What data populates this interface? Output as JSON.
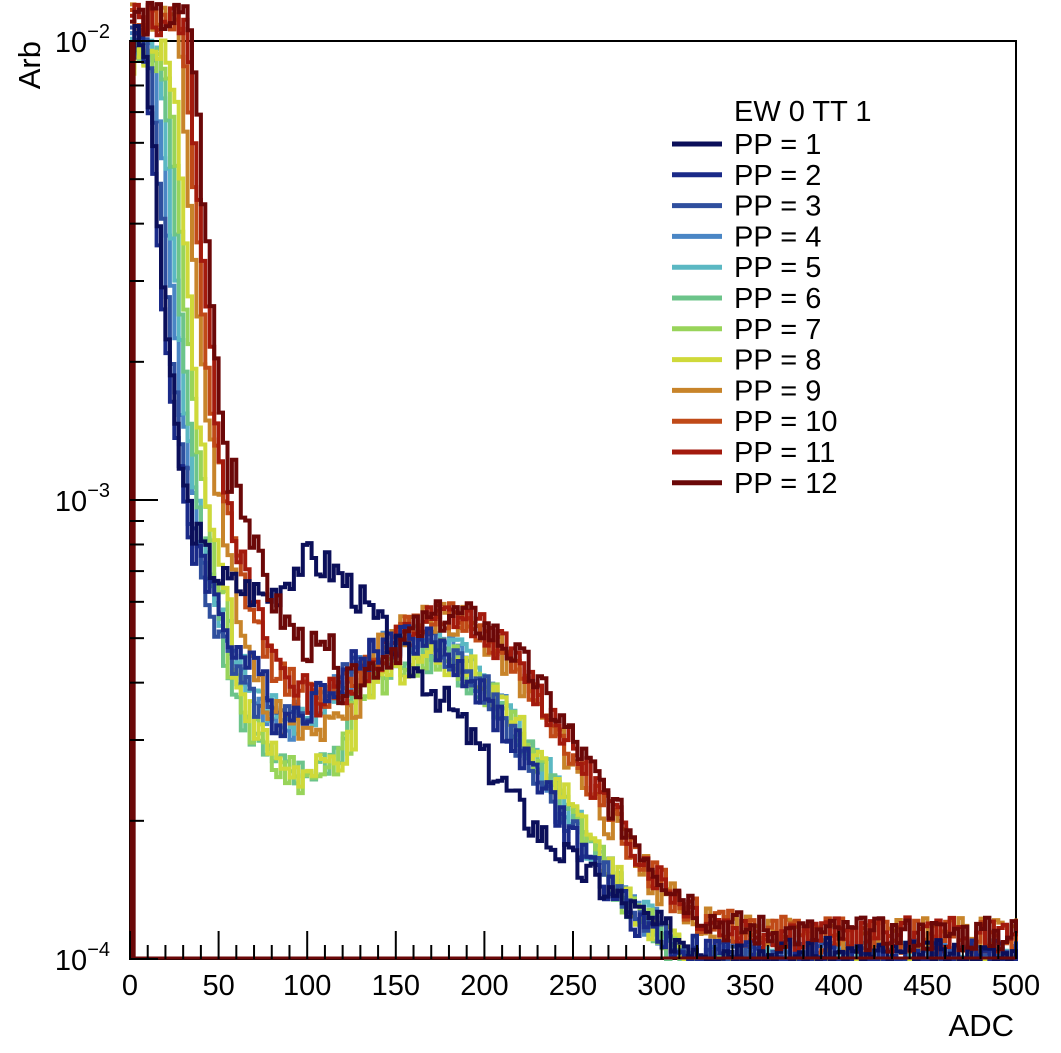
{
  "chart_data": {
    "type": "line",
    "xlabel": "ADC",
    "ylabel": "Arb",
    "xlim": [
      0,
      500
    ],
    "ylim": [
      0.0001,
      0.01
    ],
    "log_y": true,
    "x_ticks": [
      "0",
      "50",
      "100",
      "150",
      "200",
      "250",
      "300",
      "350",
      "400",
      "450",
      "500"
    ],
    "y_ticks": [
      {
        "value": 0.0001,
        "base": "10",
        "exp": "−4"
      },
      {
        "value": 0.001,
        "base": "10",
        "exp": "−3"
      },
      {
        "value": 0.01,
        "base": "10",
        "exp": "−2"
      }
    ],
    "grid": false,
    "legend": {
      "position": "top-right",
      "header": "EW 0 TT 1",
      "entries": [
        "PP = 1",
        "PP = 2",
        "PP = 3",
        "PP = 4",
        "PP = 5",
        "PP = 6",
        "PP = 7",
        "PP = 8",
        "PP = 9",
        "PP = 10",
        "PP = 11",
        "PP = 12"
      ]
    },
    "colors": [
      "#0b0f5a",
      "#1a2a88",
      "#2f4f9e",
      "#4a86c5",
      "#5bb8c3",
      "#6cc48a",
      "#98d45a",
      "#cfd93a",
      "#c8842a",
      "#c04a18",
      "#a31a0d",
      "#6b0808"
    ],
    "series_points": [
      {
        "x": [
          2,
          6,
          10,
          14,
          18,
          22,
          26,
          30,
          35,
          40,
          45,
          50,
          55,
          60,
          65,
          70,
          75,
          80,
          85,
          90,
          95,
          100,
          105,
          110,
          115,
          120,
          125,
          130,
          135,
          140,
          145,
          150,
          155,
          160,
          165,
          170,
          175,
          180,
          185,
          190,
          195,
          200,
          210,
          220,
          230,
          240,
          250,
          260,
          270,
          280,
          290,
          300,
          310,
          320,
          330,
          340,
          350,
          360,
          370,
          380,
          390,
          400,
          410,
          420,
          430,
          440,
          450,
          460,
          470,
          480,
          490,
          500
        ],
        "y": [
          0.01,
          0.01,
          0.0075,
          0.0045,
          0.0028,
          0.0018,
          0.0013,
          0.00105,
          0.00088,
          0.00078,
          0.00072,
          0.00068,
          0.00066,
          0.00065,
          0.00064,
          0.00063,
          0.00062,
          0.00063,
          0.00066,
          0.0007,
          0.00073,
          0.00075,
          0.00073,
          0.00072,
          0.0007,
          0.00067,
          0.00064,
          0.0006,
          0.00056,
          0.00053,
          0.0005,
          0.00047,
          0.00045,
          0.00043,
          0.00041,
          0.00039,
          0.00037,
          0.00035,
          0.00033,
          0.00031,
          0.00029,
          0.00027,
          0.00024,
          0.00021,
          0.00019,
          0.000175,
          0.00016,
          0.00015,
          0.00014,
          0.00013,
          0.000122,
          0.000115,
          0.000111,
          0.000108,
          0.000106,
          0.000105,
          0.000104,
          0.000103,
          0.000103,
          0.000102,
          0.000102,
          0.000102,
          0.000101,
          0.000101,
          0.000101,
          0.000101,
          0.000101,
          0.000101,
          0.000101,
          0.000101,
          0.000101,
          0.000101
        ]
      },
      {
        "x": [
          2,
          6,
          10,
          14,
          18,
          22,
          26,
          30,
          35,
          40,
          45,
          50,
          55,
          60,
          65,
          70,
          75,
          80,
          85,
          90,
          95,
          100,
          110,
          120,
          130,
          140,
          150,
          160,
          170,
          180,
          190,
          200,
          210,
          220,
          230,
          240,
          250,
          260,
          270,
          280,
          290,
          300,
          310,
          320,
          330,
          340,
          350,
          360,
          380,
          400,
          450,
          500
        ],
        "y": [
          0.01,
          0.01,
          0.0072,
          0.0042,
          0.0026,
          0.0017,
          0.0012,
          0.00095,
          0.00075,
          0.00062,
          0.00053,
          0.00047,
          0.00042,
          0.00039,
          0.00037,
          0.00035,
          0.00034,
          0.00033,
          0.00033,
          0.00034,
          0.00035,
          0.00036,
          0.00039,
          0.00042,
          0.00045,
          0.00048,
          0.0005,
          0.0005,
          0.00048,
          0.00045,
          0.00041,
          0.00037,
          0.00032,
          0.00028,
          0.00024,
          0.00021,
          0.00018,
          0.00016,
          0.00014,
          0.000128,
          0.000118,
          0.00011,
          0.000106,
          0.000104,
          0.000103,
          0.000102,
          0.000102,
          0.000101,
          0.000101,
          0.000101,
          0.000101,
          0.000101
        ]
      }
    ]
  }
}
